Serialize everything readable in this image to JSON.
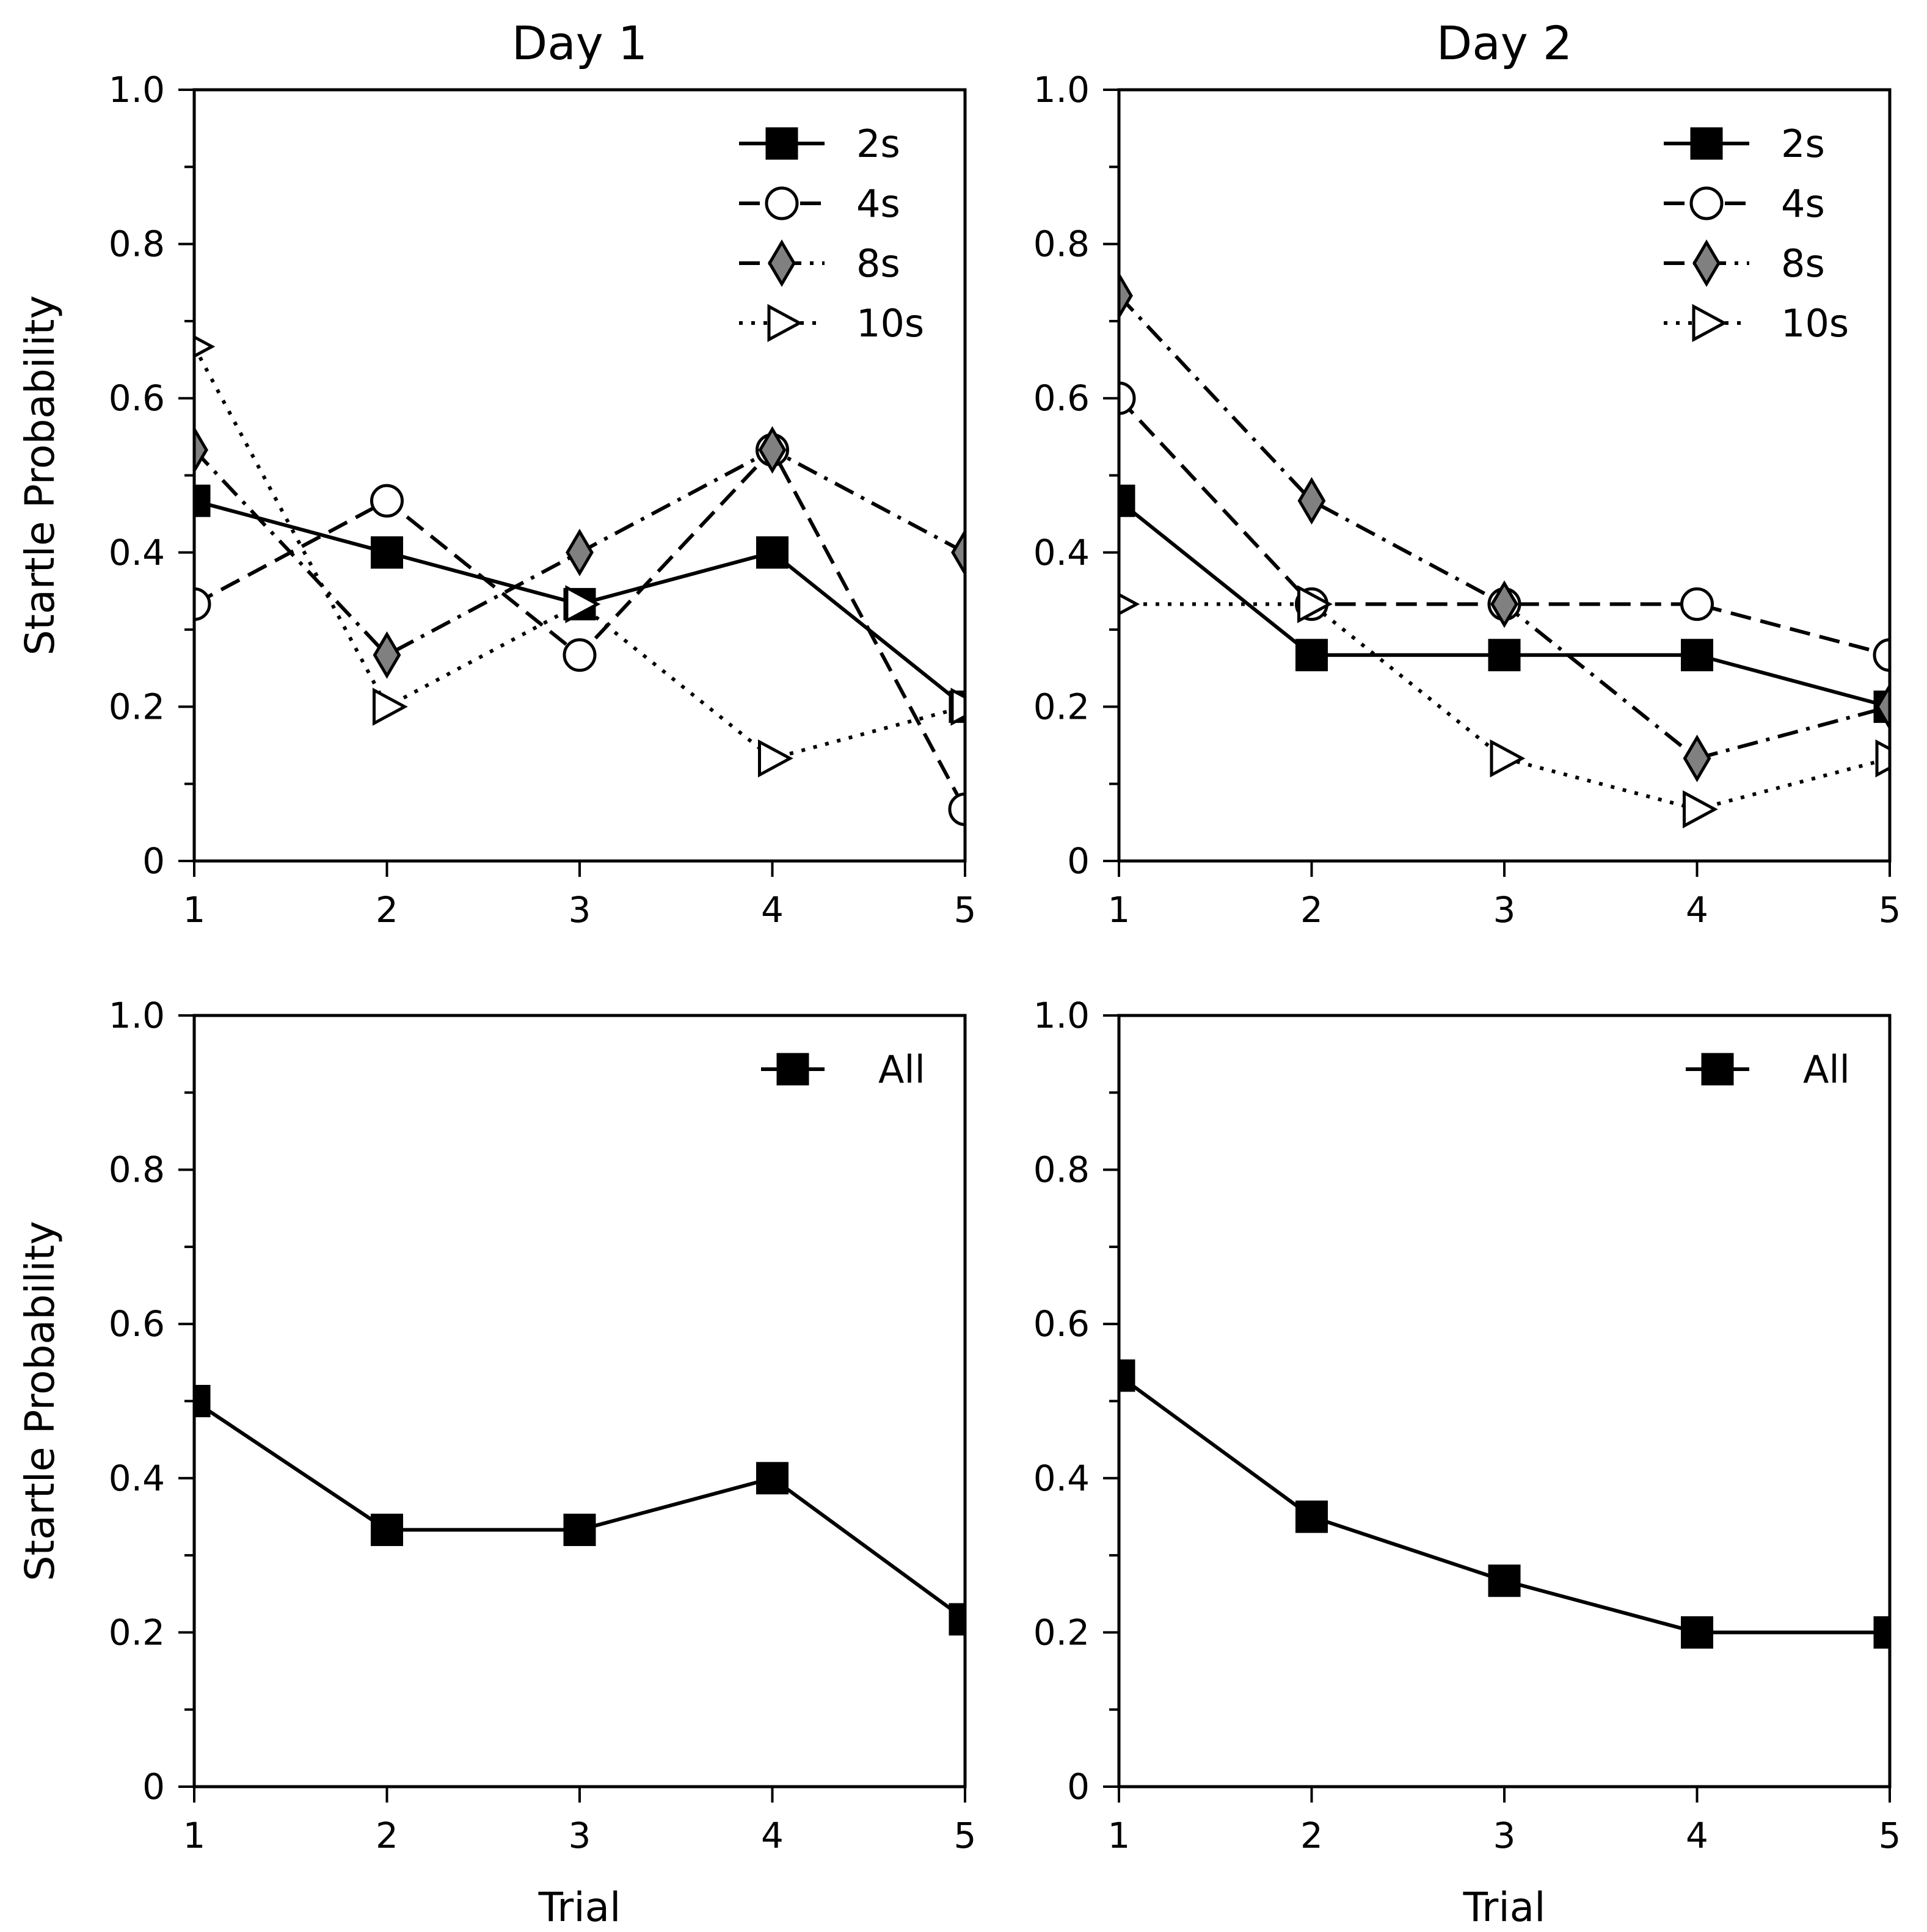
{
  "figure": {
    "y_axis_label": "Startle Probability",
    "x_axis_label": "Trial"
  },
  "chart_data": [
    {
      "type": "line",
      "title": "Day 1",
      "xlabel": "",
      "ylabel": "Startle Probability",
      "x": [
        1,
        2,
        3,
        4,
        5
      ],
      "xlim": [
        1,
        5
      ],
      "ylim": [
        0,
        1.0
      ],
      "xticks": [
        "1",
        "2",
        "3",
        "4",
        "5"
      ],
      "yticks": [
        "0",
        "0.2",
        "0.4",
        "0.6",
        "0.8",
        "1.0"
      ],
      "legend_position": "top-right",
      "grid": false,
      "series": [
        {
          "name": "2s",
          "values": [
            0.467,
            0.4,
            0.333,
            0.4,
            0.2
          ],
          "marker": "square",
          "fill": "#000000",
          "dash": "solid"
        },
        {
          "name": "4s",
          "values": [
            0.333,
            0.467,
            0.267,
            0.533,
            0.067
          ],
          "marker": "circle",
          "fill": "#ffffff",
          "dash": "dashed"
        },
        {
          "name": "8s",
          "values": [
            0.533,
            0.267,
            0.4,
            0.533,
            0.4
          ],
          "marker": "diamond",
          "fill": "#808080",
          "dash": "dashdot"
        },
        {
          "name": "10s",
          "values": [
            0.667,
            0.2,
            0.333,
            0.133,
            0.2
          ],
          "marker": "triangle-right",
          "fill": "#ffffff",
          "dash": "dotted"
        }
      ]
    },
    {
      "type": "line",
      "title": "Day 2",
      "xlabel": "",
      "ylabel": "",
      "x": [
        1,
        2,
        3,
        4,
        5
      ],
      "xlim": [
        1,
        5
      ],
      "ylim": [
        0,
        1.0
      ],
      "xticks": [
        "1",
        "2",
        "3",
        "4",
        "5"
      ],
      "yticks": [
        "0",
        "0.2",
        "0.4",
        "0.6",
        "0.8",
        "1.0"
      ],
      "legend_position": "top-right",
      "grid": false,
      "series": [
        {
          "name": "2s",
          "values": [
            0.467,
            0.267,
            0.267,
            0.267,
            0.2
          ],
          "marker": "square",
          "fill": "#000000",
          "dash": "solid"
        },
        {
          "name": "4s",
          "values": [
            0.6,
            0.333,
            0.333,
            0.333,
            0.267
          ],
          "marker": "circle",
          "fill": "#ffffff",
          "dash": "dashed"
        },
        {
          "name": "8s",
          "values": [
            0.733,
            0.467,
            0.333,
            0.133,
            0.2
          ],
          "marker": "diamond",
          "fill": "#808080",
          "dash": "dashdot"
        },
        {
          "name": "10s",
          "values": [
            0.333,
            0.333,
            0.133,
            0.067,
            0.133
          ],
          "marker": "triangle-right",
          "fill": "#ffffff",
          "dash": "dotted"
        }
      ]
    },
    {
      "type": "line",
      "title": "",
      "xlabel": "Trial",
      "ylabel": "Startle Probability",
      "x": [
        1,
        2,
        3,
        4,
        5
      ],
      "xlim": [
        1,
        5
      ],
      "ylim": [
        0,
        1.0
      ],
      "xticks": [
        "1",
        "2",
        "3",
        "4",
        "5"
      ],
      "yticks": [
        "0",
        "0.2",
        "0.4",
        "0.6",
        "0.8",
        "1.0"
      ],
      "legend_position": "top-right",
      "grid": false,
      "series": [
        {
          "name": "All",
          "values": [
            0.5,
            0.333,
            0.333,
            0.4,
            0.217
          ],
          "marker": "square",
          "fill": "#000000",
          "dash": "solid"
        }
      ]
    },
    {
      "type": "line",
      "title": "",
      "xlabel": "Trial",
      "ylabel": "",
      "x": [
        1,
        2,
        3,
        4,
        5
      ],
      "xlim": [
        1,
        5
      ],
      "ylim": [
        0,
        1.0
      ],
      "xticks": [
        "1",
        "2",
        "3",
        "4",
        "5"
      ],
      "yticks": [
        "0",
        "0.2",
        "0.4",
        "0.6",
        "0.8",
        "1.0"
      ],
      "legend_position": "top-right",
      "grid": false,
      "series": [
        {
          "name": "All",
          "values": [
            0.533,
            0.35,
            0.267,
            0.2,
            0.2
          ],
          "marker": "square",
          "fill": "#000000",
          "dash": "solid"
        }
      ]
    }
  ]
}
